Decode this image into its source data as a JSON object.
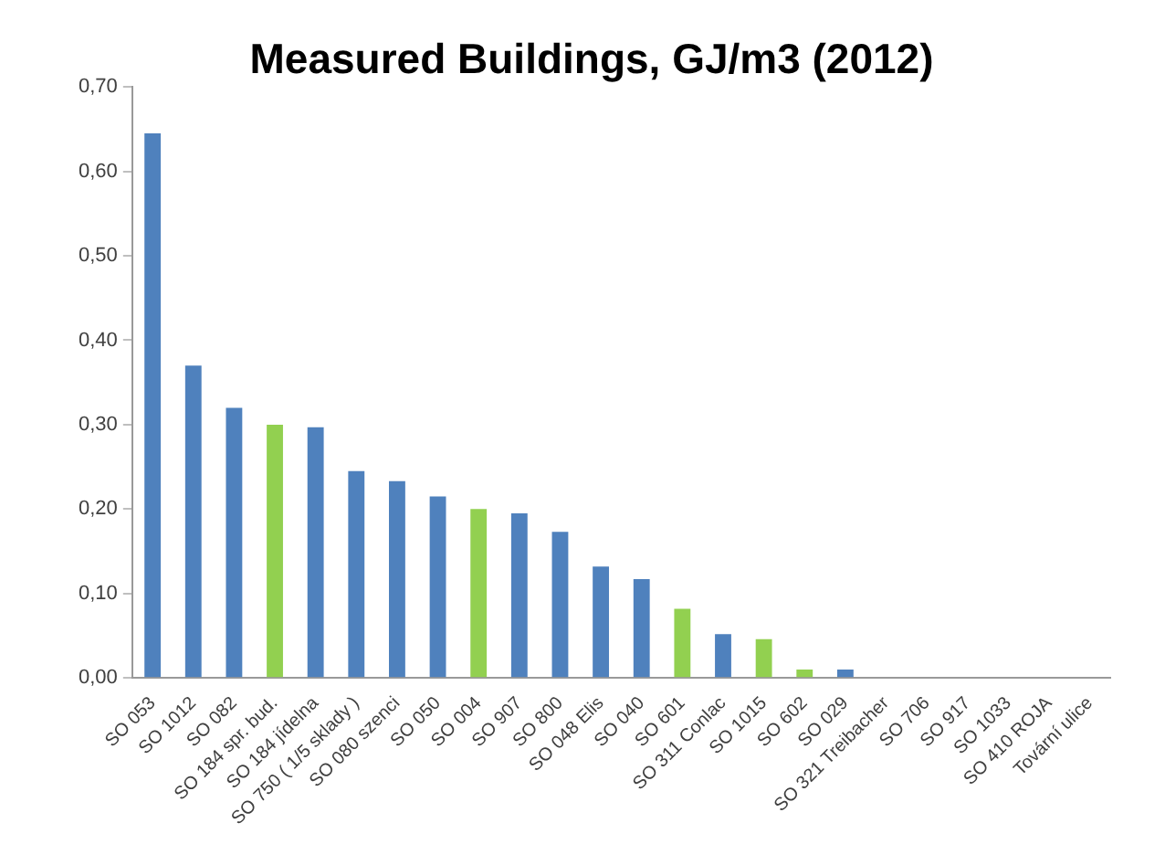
{
  "chart_data": {
    "type": "bar",
    "title": "Measured Buildings, GJ/m3 (2012)",
    "categories": [
      "SO 053",
      "SO 1012",
      "SO 082",
      "SO 184 spr. bud.",
      "SO 184 jídelna",
      "SO 750 ( 1/5 sklady )",
      "SO 080 szenci",
      "SO 050",
      "SO 004",
      "SO 907",
      "SO 800",
      "SO 048 Elis",
      "SO 040",
      "SO 601",
      "SO 311 Conlac",
      "SO 1015",
      "SO 602",
      "SO 029",
      "SO 321 Treibacher",
      "SO 706",
      "SO 917",
      "SO 1033",
      "SO 410 ROJA",
      "Tovární ulice"
    ],
    "values": [
      0.645,
      0.37,
      0.32,
      0.3,
      0.297,
      0.245,
      0.233,
      0.215,
      0.2,
      0.195,
      0.173,
      0.132,
      0.117,
      0.082,
      0.052,
      0.046,
      0.01,
      0.01,
      0,
      0,
      0,
      0,
      0,
      0
    ],
    "colors": [
      "#4f81bd",
      "#4f81bd",
      "#4f81bd",
      "#92d050",
      "#4f81bd",
      "#4f81bd",
      "#4f81bd",
      "#4f81bd",
      "#92d050",
      "#4f81bd",
      "#4f81bd",
      "#4f81bd",
      "#4f81bd",
      "#92d050",
      "#4f81bd",
      "#92d050",
      "#92d050",
      "#4f81bd",
      "#4f81bd",
      "#4f81bd",
      "#4f81bd",
      "#4f81bd",
      "#4f81bd",
      "#4f81bd"
    ],
    "ylim": [
      0,
      0.7
    ],
    "yticks": [
      {
        "value": 0,
        "label": "0,00"
      },
      {
        "value": 0.1,
        "label": "0,10"
      },
      {
        "value": 0.2,
        "label": "0,20"
      },
      {
        "value": 0.3,
        "label": "0,30"
      },
      {
        "value": 0.4,
        "label": "0,40"
      },
      {
        "value": 0.5,
        "label": "0,50"
      },
      {
        "value": 0.6,
        "label": "0,60"
      },
      {
        "value": 0.7,
        "label": "0,70"
      }
    ],
    "grid": false,
    "legend": false
  }
}
